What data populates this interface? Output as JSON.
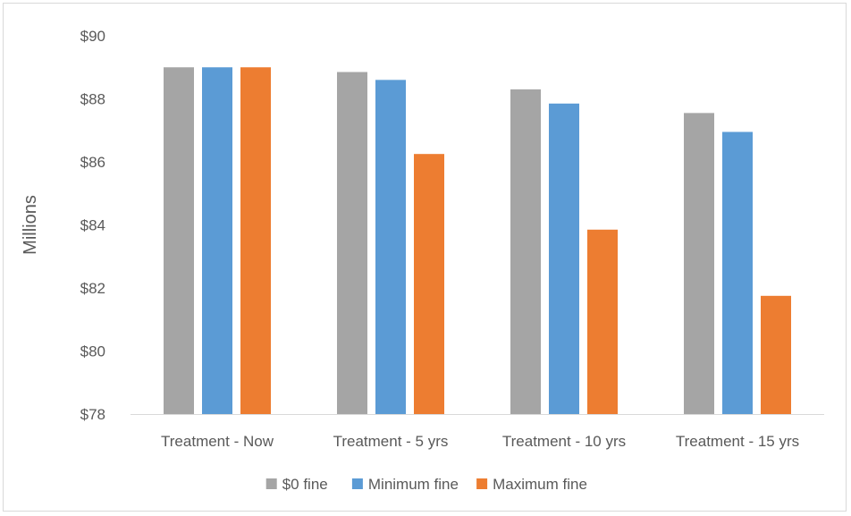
{
  "chart_data": {
    "type": "bar",
    "title": "",
    "xlabel": "",
    "ylabel": "Millions",
    "ylim": [
      78,
      90
    ],
    "ytick_step": 2,
    "ytick_prefix": "$",
    "categories": [
      "Treatment - Now",
      "Treatment - 5 yrs",
      "Treatment - 10 yrs",
      "Treatment - 15 yrs"
    ],
    "series": [
      {
        "name": "$0 fine",
        "color": "#a5a5a5",
        "values": [
          89.0,
          88.85,
          88.3,
          87.55
        ]
      },
      {
        "name": "Minimum fine",
        "color": "#5b9bd5",
        "values": [
          89.0,
          88.6,
          87.85,
          86.95
        ]
      },
      {
        "name": "Maximum fine",
        "color": "#ed7d31",
        "values": [
          89.0,
          86.25,
          83.85,
          81.75
        ]
      }
    ],
    "grid": false,
    "legend": "bottom"
  }
}
